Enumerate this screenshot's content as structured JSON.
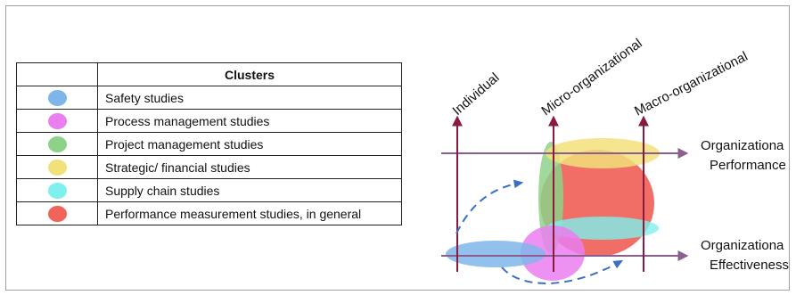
{
  "legend": {
    "header": "Clusters",
    "rows": [
      {
        "label": "Safety studies",
        "color": "#7fb6ea"
      },
      {
        "label": "Process management studies",
        "color": "#ea7ef0"
      },
      {
        "label": "Project management studies",
        "color": "#8ed28a"
      },
      {
        "label": "Strategic/ financial studies",
        "color": "#f2e07a"
      },
      {
        "label": "Supply chain studies",
        "color": "#7ef0ee"
      },
      {
        "label": "Performance measurement studies, in general",
        "color": "#f0625a"
      }
    ]
  },
  "diagram": {
    "levels": [
      "Individual",
      "Micro-organizational",
      "Macro-organizational"
    ],
    "rows": [
      {
        "line1": "Organizationa",
        "line2": "Performance"
      },
      {
        "line1": "Organizationa",
        "line2": "Effectiveness"
      }
    ],
    "colors": {
      "vertical_axis": "#8b1a3f",
      "horizontal_axis": "#8a5f8f",
      "dashed_arrow": "#3b6fc4",
      "safety": "#7fb6ea",
      "process": "#ea7ef0",
      "project": "#8ed28a",
      "strategic": "#f2e07a",
      "supply": "#7ef0ee",
      "performance": "#f0625a"
    }
  }
}
